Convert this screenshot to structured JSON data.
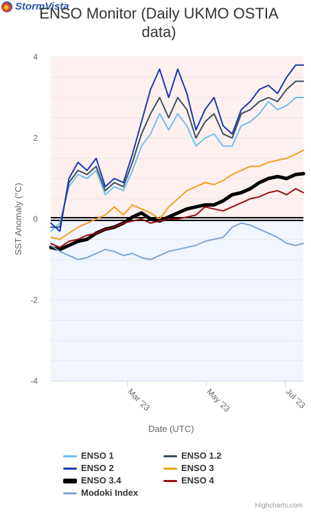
{
  "brand": {
    "name": "StormVista"
  },
  "title_line1": "ENSO Monitor (Daily UKMO OSTIA",
  "title_line2": "data)",
  "credits": "Highcharts.com",
  "chart_data": {
    "type": "line",
    "title": "ENSO Monitor (Daily UKMO OSTIA data)",
    "xlabel": "Date (UTC)",
    "ylabel": "SST Anomaly (°C)",
    "ylim": [
      -4,
      4
    ],
    "yticks": [
      "-4",
      "-2",
      "0",
      "2",
      "4"
    ],
    "xticks": [
      {
        "label": "Mar '23",
        "date": "2023-03-01"
      },
      {
        "label": "May '23",
        "date": "2023-05-01"
      },
      {
        "label": "Jul '23",
        "date": "2023-07-01"
      }
    ],
    "xlim": [
      "2023-01-01",
      "2023-07-15"
    ],
    "background_bands": [
      {
        "from": 0,
        "to": 4,
        "color": "#fff0f0"
      },
      {
        "from": -4,
        "to": 0,
        "color": "#f0f5ff"
      }
    ],
    "zero_line": true,
    "legend_position": "bottom",
    "series": [
      {
        "name": "ENSO 1",
        "color": "#6ec0ef",
        "width": 2,
        "x": [
          "2023-01-01",
          "2023-01-08",
          "2023-01-15",
          "2023-01-22",
          "2023-01-29",
          "2023-02-05",
          "2023-02-12",
          "2023-02-19",
          "2023-02-26",
          "2023-03-05",
          "2023-03-12",
          "2023-03-19",
          "2023-03-26",
          "2023-04-02",
          "2023-04-09",
          "2023-04-16",
          "2023-04-23",
          "2023-04-30",
          "2023-05-07",
          "2023-05-14",
          "2023-05-21",
          "2023-05-28",
          "2023-06-04",
          "2023-06-11",
          "2023-06-18",
          "2023-06-25",
          "2023-07-02",
          "2023-07-09",
          "2023-07-15"
        ],
        "values": [
          -0.3,
          -0.1,
          0.8,
          1.1,
          1.0,
          1.2,
          0.6,
          0.8,
          0.7,
          1.2,
          1.8,
          2.1,
          2.6,
          2.2,
          2.6,
          2.3,
          1.8,
          2.0,
          2.1,
          1.8,
          1.8,
          2.3,
          2.4,
          2.6,
          2.9,
          2.7,
          2.8,
          3.0,
          3.0
        ]
      },
      {
        "name": "ENSO 1.2",
        "color": "#37505e",
        "width": 2,
        "x": [
          "2023-01-01",
          "2023-01-08",
          "2023-01-15",
          "2023-01-22",
          "2023-01-29",
          "2023-02-05",
          "2023-02-12",
          "2023-02-19",
          "2023-02-26",
          "2023-03-05",
          "2023-03-12",
          "2023-03-19",
          "2023-03-26",
          "2023-04-02",
          "2023-04-09",
          "2023-04-16",
          "2023-04-23",
          "2023-04-30",
          "2023-05-07",
          "2023-05-14",
          "2023-05-21",
          "2023-05-28",
          "2023-06-04",
          "2023-06-11",
          "2023-06-18",
          "2023-06-25",
          "2023-07-02",
          "2023-07-09",
          "2023-07-15"
        ],
        "values": [
          -0.2,
          -0.2,
          0.9,
          1.2,
          1.1,
          1.3,
          0.7,
          0.9,
          0.8,
          1.4,
          2.1,
          2.6,
          3.0,
          2.5,
          3.0,
          2.7,
          2.0,
          2.4,
          2.6,
          2.1,
          2.0,
          2.6,
          2.7,
          2.9,
          3.0,
          2.9,
          3.2,
          3.4,
          3.4
        ]
      },
      {
        "name": "ENSO 2",
        "color": "#1637b4",
        "width": 2,
        "x": [
          "2023-01-01",
          "2023-01-08",
          "2023-01-15",
          "2023-01-22",
          "2023-01-29",
          "2023-02-05",
          "2023-02-12",
          "2023-02-19",
          "2023-02-26",
          "2023-03-05",
          "2023-03-12",
          "2023-03-19",
          "2023-03-26",
          "2023-04-02",
          "2023-04-09",
          "2023-04-16",
          "2023-04-23",
          "2023-04-30",
          "2023-05-07",
          "2023-05-14",
          "2023-05-21",
          "2023-05-28",
          "2023-06-04",
          "2023-06-11",
          "2023-06-18",
          "2023-06-25",
          "2023-07-02",
          "2023-07-09",
          "2023-07-15"
        ],
        "values": [
          -0.1,
          -0.3,
          1.0,
          1.4,
          1.2,
          1.5,
          0.8,
          1.0,
          0.9,
          1.6,
          2.4,
          3.2,
          3.7,
          3.0,
          3.7,
          3.1,
          2.2,
          2.7,
          3.0,
          2.3,
          2.1,
          2.7,
          2.9,
          3.2,
          3.3,
          3.1,
          3.5,
          3.8,
          3.8
        ]
      },
      {
        "name": "ENSO 3",
        "color": "#f2a01e",
        "width": 2,
        "x": [
          "2023-01-01",
          "2023-01-08",
          "2023-01-15",
          "2023-01-22",
          "2023-01-29",
          "2023-02-05",
          "2023-02-12",
          "2023-02-19",
          "2023-02-26",
          "2023-03-05",
          "2023-03-12",
          "2023-03-19",
          "2023-03-26",
          "2023-04-02",
          "2023-04-09",
          "2023-04-16",
          "2023-04-23",
          "2023-04-30",
          "2023-05-07",
          "2023-05-14",
          "2023-05-21",
          "2023-05-28",
          "2023-06-04",
          "2023-06-11",
          "2023-06-18",
          "2023-06-25",
          "2023-07-02",
          "2023-07-09",
          "2023-07-15"
        ],
        "values": [
          -0.45,
          -0.5,
          -0.35,
          -0.2,
          -0.1,
          0.0,
          0.1,
          0.3,
          0.1,
          0.35,
          0.25,
          0.15,
          0.0,
          0.3,
          0.5,
          0.7,
          0.8,
          0.9,
          0.85,
          0.95,
          1.1,
          1.2,
          1.3,
          1.3,
          1.4,
          1.45,
          1.5,
          1.6,
          1.7
        ]
      },
      {
        "name": "ENSO 3.4",
        "color": "#000000",
        "width": 5,
        "x": [
          "2023-01-01",
          "2023-01-08",
          "2023-01-15",
          "2023-01-22",
          "2023-01-29",
          "2023-02-05",
          "2023-02-12",
          "2023-02-19",
          "2023-02-26",
          "2023-03-05",
          "2023-03-12",
          "2023-03-19",
          "2023-03-26",
          "2023-04-02",
          "2023-04-09",
          "2023-04-16",
          "2023-04-23",
          "2023-04-30",
          "2023-05-07",
          "2023-05-14",
          "2023-05-21",
          "2023-05-28",
          "2023-06-04",
          "2023-06-11",
          "2023-06-18",
          "2023-06-25",
          "2023-07-02",
          "2023-07-09",
          "2023-07-15"
        ],
        "values": [
          -0.7,
          -0.75,
          -0.65,
          -0.55,
          -0.5,
          -0.35,
          -0.25,
          -0.2,
          -0.1,
          0.05,
          0.15,
          0.0,
          -0.05,
          0.05,
          0.15,
          0.25,
          0.3,
          0.35,
          0.35,
          0.45,
          0.6,
          0.65,
          0.75,
          0.9,
          1.0,
          1.05,
          1.0,
          1.1,
          1.12
        ]
      },
      {
        "name": "ENSO 4",
        "color": "#990f0f",
        "width": 2,
        "x": [
          "2023-01-01",
          "2023-01-08",
          "2023-01-15",
          "2023-01-22",
          "2023-01-29",
          "2023-02-05",
          "2023-02-12",
          "2023-02-19",
          "2023-02-26",
          "2023-03-05",
          "2023-03-12",
          "2023-03-19",
          "2023-03-26",
          "2023-04-02",
          "2023-04-09",
          "2023-04-16",
          "2023-04-23",
          "2023-04-30",
          "2023-05-07",
          "2023-05-14",
          "2023-05-21",
          "2023-05-28",
          "2023-06-04",
          "2023-06-11",
          "2023-06-18",
          "2023-06-25",
          "2023-07-02",
          "2023-07-09",
          "2023-07-15"
        ],
        "values": [
          -0.6,
          -0.7,
          -0.55,
          -0.5,
          -0.4,
          -0.35,
          -0.25,
          -0.2,
          -0.1,
          -0.05,
          0.0,
          -0.1,
          -0.05,
          0.0,
          0.0,
          0.05,
          0.1,
          0.3,
          0.25,
          0.2,
          0.3,
          0.4,
          0.5,
          0.55,
          0.65,
          0.7,
          0.6,
          0.75,
          0.65
        ]
      },
      {
        "name": "Modoki Index",
        "color": "#7fa6d6",
        "width": 2,
        "x": [
          "2023-01-01",
          "2023-01-08",
          "2023-01-15",
          "2023-01-22",
          "2023-01-29",
          "2023-02-05",
          "2023-02-12",
          "2023-02-19",
          "2023-02-26",
          "2023-03-05",
          "2023-03-12",
          "2023-03-19",
          "2023-03-26",
          "2023-04-02",
          "2023-04-09",
          "2023-04-16",
          "2023-04-23",
          "2023-04-30",
          "2023-05-07",
          "2023-05-14",
          "2023-05-21",
          "2023-05-28",
          "2023-06-04",
          "2023-06-11",
          "2023-06-18",
          "2023-06-25",
          "2023-07-02",
          "2023-07-09",
          "2023-07-15"
        ],
        "values": [
          -0.65,
          -0.8,
          -0.9,
          -1.0,
          -0.95,
          -0.85,
          -0.75,
          -0.8,
          -0.9,
          -0.85,
          -0.95,
          -1.0,
          -0.9,
          -0.8,
          -0.75,
          -0.7,
          -0.65,
          -0.55,
          -0.5,
          -0.45,
          -0.2,
          -0.1,
          -0.15,
          -0.25,
          -0.35,
          -0.45,
          -0.6,
          -0.65,
          -0.6
        ]
      }
    ]
  }
}
